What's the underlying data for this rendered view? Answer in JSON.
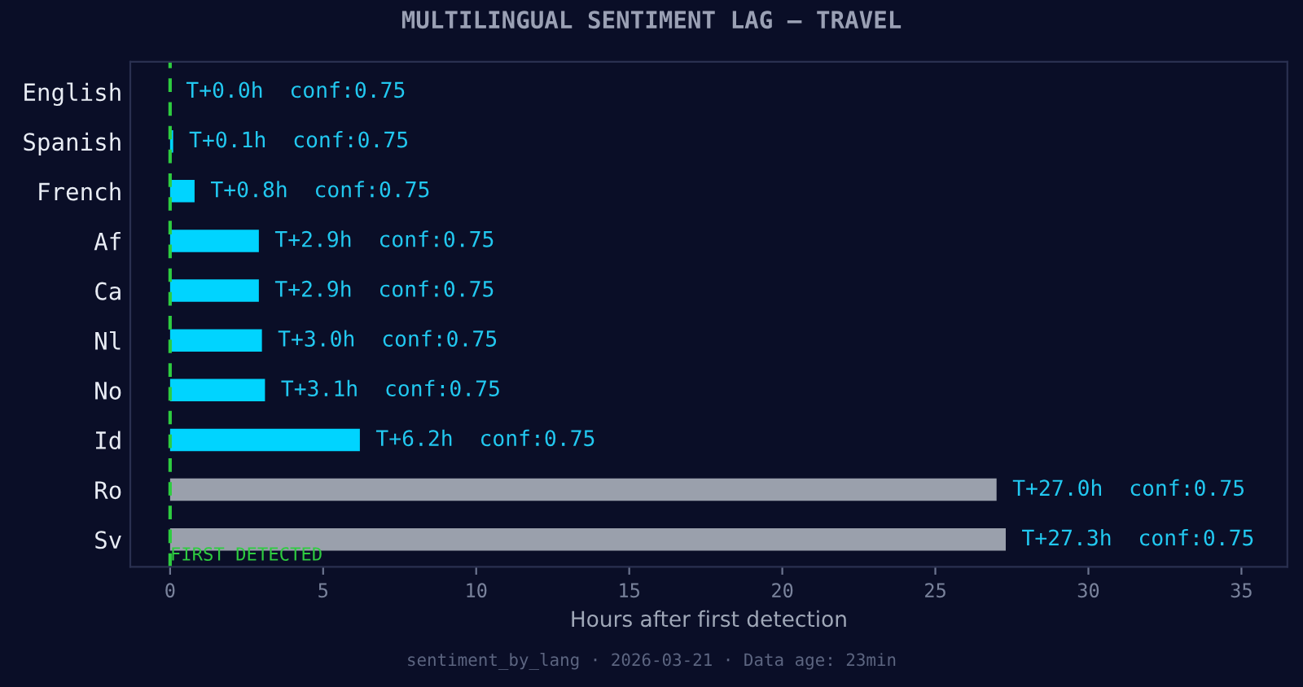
{
  "chart_data": {
    "type": "bar",
    "orientation": "horizontal",
    "title": "MULTILINGUAL SENTIMENT LAG — TRAVEL",
    "xlabel": "Hours after first detection",
    "categories": [
      "English",
      "Spanish",
      "French",
      "Af",
      "Ca",
      "Nl",
      "No",
      "Id",
      "Ro",
      "Sv"
    ],
    "values": [
      0.0,
      0.1,
      0.8,
      2.9,
      2.9,
      3.0,
      3.1,
      6.2,
      27.0,
      27.3
    ],
    "colors": [
      "#00d4ff",
      "#00d4ff",
      "#00d4ff",
      "#00d4ff",
      "#00d4ff",
      "#00d4ff",
      "#00d4ff",
      "#00d4ff",
      "#9aa0ac",
      "#9aa0ac"
    ],
    "value_labels": [
      "T+0.0h  conf:0.75",
      "T+0.1h  conf:0.75",
      "T+0.8h  conf:0.75",
      "T+2.9h  conf:0.75",
      "T+2.9h  conf:0.75",
      "T+3.0h  conf:0.75",
      "T+3.1h  conf:0.75",
      "T+6.2h  conf:0.75",
      "T+27.0h  conf:0.75",
      "T+27.3h  conf:0.75"
    ],
    "xlim": [
      -1.3,
      36.5
    ],
    "xticks": [
      0,
      5,
      10,
      15,
      20,
      25,
      30,
      35
    ],
    "ref_lines": [
      {
        "axis": "x",
        "value": 0,
        "label": "FIRST DETECTED",
        "color": "#2ecc40",
        "line_style": "dashed"
      }
    ],
    "annotations": [
      "sentiment_by_lang · 2026-03-21 · Data age: 23min"
    ],
    "grid": false
  }
}
